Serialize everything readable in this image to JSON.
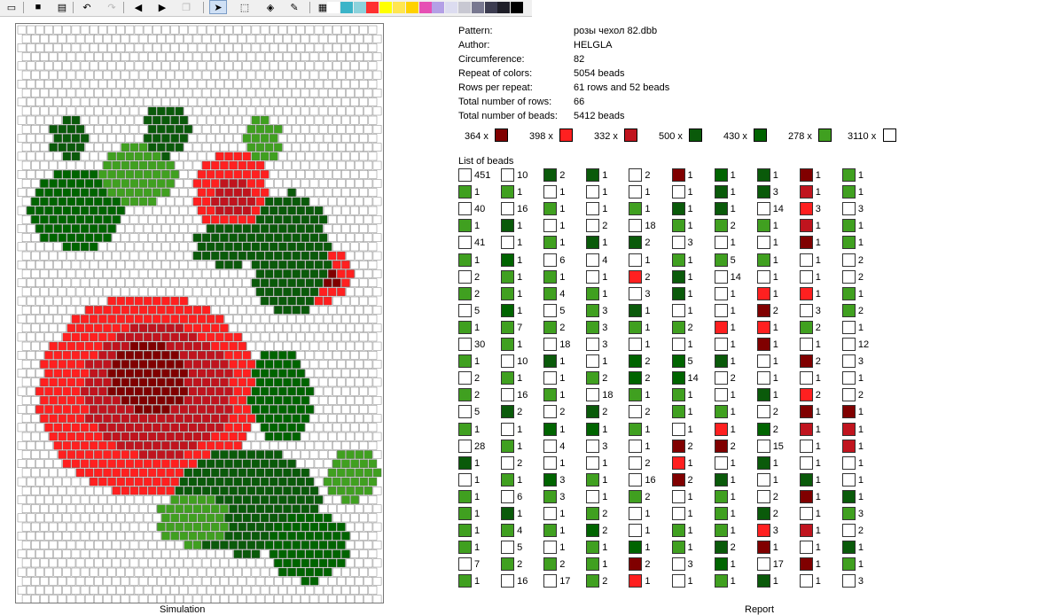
{
  "toolbar": {
    "buttons": [
      {
        "name": "new-icon",
        "glyph": "▭",
        "state": "normal"
      },
      {
        "name": "save-icon",
        "glyph": "■",
        "state": "normal"
      },
      {
        "name": "print-icon",
        "glyph": "▤",
        "state": "normal"
      },
      {
        "name": "undo-icon",
        "glyph": "↶",
        "state": "normal"
      },
      {
        "name": "redo-icon",
        "glyph": "↷",
        "state": "disabled"
      },
      {
        "name": "arrow-left-icon",
        "glyph": "◀",
        "state": "normal"
      },
      {
        "name": "arrow-right-icon",
        "glyph": "▶",
        "state": "normal"
      },
      {
        "name": "copy-icon",
        "glyph": "❐",
        "state": "disabled"
      },
      {
        "name": "pointer-icon",
        "glyph": "➤",
        "state": "active"
      },
      {
        "name": "select-rect-icon",
        "glyph": "⬚",
        "state": "normal"
      },
      {
        "name": "fill-bucket-icon",
        "glyph": "◈",
        "state": "normal"
      },
      {
        "name": "color-picker-icon",
        "glyph": "✎",
        "state": "normal"
      },
      {
        "name": "grid-icon",
        "glyph": "▦",
        "state": "normal"
      }
    ],
    "palette": [
      "#ffffff",
      "#3cb4c8",
      "#8cd2dc",
      "#ff3030",
      "#ffff00",
      "#ffe650",
      "#ffd200",
      "#e650b4",
      "#b4a0e6",
      "#dcdcf0",
      "#c8c8d2",
      "#787890",
      "#3c3c50",
      "#1e1e28",
      "#000000"
    ]
  },
  "labels": {
    "simulation": "Simulation",
    "report": "Report",
    "list_of_beads": "List of beads"
  },
  "info": [
    {
      "label": "Pattern:",
      "value": "розы чехол 82.dbb"
    },
    {
      "label": "Author:",
      "value": "HELGLA"
    },
    {
      "label": "Circumference:",
      "value": "82"
    },
    {
      "label": "Repeat of colors:",
      "value": "5054 beads"
    },
    {
      "label": "Rows per repeat:",
      "value": "61 rows and 52 beads"
    },
    {
      "label": "Total number of rows:",
      "value": "66"
    },
    {
      "label": "Total number of beads:",
      "value": "5412 beads"
    }
  ],
  "colors": {
    "W": "#ffffff",
    "R": "#ff2020",
    "M": "#c0141e",
    "D": "#800000",
    "G": "#0a5a0a",
    "F": "#006400",
    "L": "#40a020"
  },
  "color_summary": [
    {
      "count": "364 x",
      "color": "D"
    },
    {
      "count": "398 x",
      "color": "R"
    },
    {
      "count": "332 x",
      "color": "M"
    },
    {
      "count": "500 x",
      "color": "G"
    },
    {
      "count": "430 x",
      "color": "F"
    },
    {
      "count": "278 x",
      "color": "L"
    },
    {
      "count": "3110 x",
      "color": "W"
    }
  ],
  "bead_list": [
    [
      [
        "W",
        "451"
      ],
      [
        "L",
        "1"
      ],
      [
        "W",
        "40"
      ],
      [
        "L",
        "1"
      ],
      [
        "W",
        "41"
      ],
      [
        "L",
        "1"
      ],
      [
        "W",
        "2"
      ],
      [
        "L",
        "2"
      ],
      [
        "W",
        "5"
      ],
      [
        "L",
        "1"
      ],
      [
        "W",
        "30"
      ],
      [
        "L",
        "1"
      ],
      [
        "W",
        "2"
      ],
      [
        "L",
        "2"
      ],
      [
        "W",
        "5"
      ],
      [
        "L",
        "1"
      ],
      [
        "W",
        "28"
      ],
      [
        "G",
        "1"
      ],
      [
        "W",
        "1"
      ],
      [
        "L",
        "1"
      ],
      [
        "L",
        "1"
      ],
      [
        "L",
        "1"
      ],
      [
        "L",
        "1"
      ],
      [
        "W",
        "7"
      ],
      [
        "L",
        "1"
      ]
    ],
    [
      [
        "W",
        "10"
      ],
      [
        "L",
        "1"
      ],
      [
        "W",
        "16"
      ],
      [
        "G",
        "1"
      ],
      [
        "W",
        "1"
      ],
      [
        "F",
        "1"
      ],
      [
        "L",
        "1"
      ],
      [
        "L",
        "1"
      ],
      [
        "F",
        "1"
      ],
      [
        "L",
        "7"
      ],
      [
        "L",
        "1"
      ],
      [
        "W",
        "10"
      ],
      [
        "L",
        "1"
      ],
      [
        "W",
        "16"
      ],
      [
        "G",
        "2"
      ],
      [
        "W",
        "1"
      ],
      [
        "L",
        "1"
      ],
      [
        "W",
        "2"
      ],
      [
        "L",
        "1"
      ],
      [
        "W",
        "6"
      ],
      [
        "G",
        "1"
      ],
      [
        "L",
        "4"
      ],
      [
        "W",
        "5"
      ],
      [
        "L",
        "2"
      ],
      [
        "W",
        "16"
      ]
    ],
    [
      [
        "G",
        "2"
      ],
      [
        "W",
        "1"
      ],
      [
        "L",
        "1"
      ],
      [
        "W",
        "1"
      ],
      [
        "L",
        "1"
      ],
      [
        "W",
        "6"
      ],
      [
        "L",
        "1"
      ],
      [
        "L",
        "4"
      ],
      [
        "W",
        "5"
      ],
      [
        "L",
        "2"
      ],
      [
        "W",
        "18"
      ],
      [
        "G",
        "1"
      ],
      [
        "W",
        "1"
      ],
      [
        "L",
        "1"
      ],
      [
        "W",
        "2"
      ],
      [
        "F",
        "1"
      ],
      [
        "W",
        "4"
      ],
      [
        "W",
        "1"
      ],
      [
        "F",
        "3"
      ],
      [
        "L",
        "3"
      ],
      [
        "W",
        "1"
      ],
      [
        "L",
        "1"
      ],
      [
        "W",
        "1"
      ],
      [
        "L",
        "2"
      ],
      [
        "W",
        "17"
      ]
    ],
    [
      [
        "G",
        "1"
      ],
      [
        "W",
        "1"
      ],
      [
        "W",
        "1"
      ],
      [
        "W",
        "2"
      ],
      [
        "G",
        "1"
      ],
      [
        "W",
        "4"
      ],
      [
        "W",
        "1"
      ],
      [
        "L",
        "1"
      ],
      [
        "L",
        "3"
      ],
      [
        "L",
        "3"
      ],
      [
        "W",
        "3"
      ],
      [
        "W",
        "1"
      ],
      [
        "L",
        "2"
      ],
      [
        "W",
        "18"
      ],
      [
        "G",
        "2"
      ],
      [
        "F",
        "1"
      ],
      [
        "W",
        "3"
      ],
      [
        "W",
        "1"
      ],
      [
        "L",
        "1"
      ],
      [
        "W",
        "1"
      ],
      [
        "L",
        "2"
      ],
      [
        "F",
        "2"
      ],
      [
        "L",
        "1"
      ],
      [
        "L",
        "1"
      ],
      [
        "L",
        "2"
      ]
    ],
    [
      [
        "W",
        "2"
      ],
      [
        "W",
        "1"
      ],
      [
        "L",
        "1"
      ],
      [
        "W",
        "18"
      ],
      [
        "G",
        "2"
      ],
      [
        "W",
        "1"
      ],
      [
        "R",
        "2"
      ],
      [
        "W",
        "3"
      ],
      [
        "G",
        "1"
      ],
      [
        "L",
        "1"
      ],
      [
        "W",
        "1"
      ],
      [
        "F",
        "2"
      ],
      [
        "F",
        "2"
      ],
      [
        "L",
        "1"
      ],
      [
        "W",
        "2"
      ],
      [
        "L",
        "1"
      ],
      [
        "W",
        "1"
      ],
      [
        "W",
        "2"
      ],
      [
        "W",
        "16"
      ],
      [
        "L",
        "2"
      ],
      [
        "W",
        "1"
      ],
      [
        "W",
        "1"
      ],
      [
        "F",
        "1"
      ],
      [
        "D",
        "2"
      ],
      [
        "R",
        "1"
      ]
    ],
    [
      [
        "D",
        "1"
      ],
      [
        "W",
        "1"
      ],
      [
        "G",
        "1"
      ],
      [
        "L",
        "1"
      ],
      [
        "W",
        "3"
      ],
      [
        "L",
        "1"
      ],
      [
        "G",
        "1"
      ],
      [
        "G",
        "1"
      ],
      [
        "W",
        "1"
      ],
      [
        "L",
        "2"
      ],
      [
        "W",
        "1"
      ],
      [
        "F",
        "5"
      ],
      [
        "F",
        "14"
      ],
      [
        "L",
        "1"
      ],
      [
        "L",
        "1"
      ],
      [
        "W",
        "1"
      ],
      [
        "D",
        "2"
      ],
      [
        "R",
        "1"
      ],
      [
        "D",
        "2"
      ],
      [
        "W",
        "1"
      ],
      [
        "W",
        "1"
      ],
      [
        "L",
        "1"
      ],
      [
        "L",
        "1"
      ],
      [
        "W",
        "3"
      ],
      [
        "W",
        "1"
      ]
    ],
    [
      [
        "F",
        "1"
      ],
      [
        "G",
        "1"
      ],
      [
        "G",
        "1"
      ],
      [
        "L",
        "2"
      ],
      [
        "W",
        "1"
      ],
      [
        "L",
        "5"
      ],
      [
        "W",
        "14"
      ],
      [
        "W",
        "1"
      ],
      [
        "W",
        "1"
      ],
      [
        "R",
        "1"
      ],
      [
        "W",
        "1"
      ],
      [
        "G",
        "1"
      ],
      [
        "W",
        "2"
      ],
      [
        "W",
        "1"
      ],
      [
        "L",
        "1"
      ],
      [
        "R",
        "1"
      ],
      [
        "D",
        "2"
      ],
      [
        "W",
        "1"
      ],
      [
        "G",
        "1"
      ],
      [
        "L",
        "1"
      ],
      [
        "L",
        "1"
      ],
      [
        "L",
        "1"
      ],
      [
        "G",
        "2"
      ],
      [
        "F",
        "1"
      ],
      [
        "L",
        "1"
      ]
    ],
    [
      [
        "G",
        "1"
      ],
      [
        "G",
        "3"
      ],
      [
        "W",
        "14"
      ],
      [
        "L",
        "1"
      ],
      [
        "W",
        "1"
      ],
      [
        "L",
        "1"
      ],
      [
        "W",
        "1"
      ],
      [
        "R",
        "1"
      ],
      [
        "D",
        "2"
      ],
      [
        "R",
        "1"
      ],
      [
        "D",
        "1"
      ],
      [
        "W",
        "1"
      ],
      [
        "W",
        "1"
      ],
      [
        "G",
        "1"
      ],
      [
        "W",
        "2"
      ],
      [
        "F",
        "2"
      ],
      [
        "W",
        "15"
      ],
      [
        "G",
        "1"
      ],
      [
        "W",
        "1"
      ],
      [
        "W",
        "2"
      ],
      [
        "G",
        "2"
      ],
      [
        "R",
        "3"
      ],
      [
        "D",
        "1"
      ],
      [
        "W",
        "17"
      ],
      [
        "G",
        "1"
      ]
    ],
    [
      [
        "D",
        "1"
      ],
      [
        "M",
        "1"
      ],
      [
        "R",
        "3"
      ],
      [
        "M",
        "1"
      ],
      [
        "D",
        "1"
      ],
      [
        "W",
        "1"
      ],
      [
        "W",
        "1"
      ],
      [
        "R",
        "1"
      ],
      [
        "W",
        "3"
      ],
      [
        "L",
        "2"
      ],
      [
        "W",
        "1"
      ],
      [
        "D",
        "2"
      ],
      [
        "W",
        "1"
      ],
      [
        "R",
        "2"
      ],
      [
        "D",
        "1"
      ],
      [
        "M",
        "1"
      ],
      [
        "W",
        "1"
      ],
      [
        "W",
        "1"
      ],
      [
        "G",
        "1"
      ],
      [
        "D",
        "1"
      ],
      [
        "W",
        "1"
      ],
      [
        "M",
        "1"
      ],
      [
        "W",
        "1"
      ],
      [
        "D",
        "1"
      ],
      [
        "W",
        "1"
      ]
    ],
    [
      [
        "L",
        "1"
      ],
      [
        "L",
        "1"
      ],
      [
        "W",
        "3"
      ],
      [
        "L",
        "1"
      ],
      [
        "L",
        "1"
      ],
      [
        "W",
        "2"
      ],
      [
        "W",
        "2"
      ],
      [
        "L",
        "1"
      ],
      [
        "L",
        "2"
      ],
      [
        "W",
        "1"
      ],
      [
        "W",
        "12"
      ],
      [
        "W",
        "3"
      ],
      [
        "W",
        "1"
      ],
      [
        "W",
        "2"
      ],
      [
        "D",
        "1"
      ],
      [
        "M",
        "1"
      ],
      [
        "M",
        "1"
      ],
      [
        "W",
        "1"
      ],
      [
        "W",
        "1"
      ],
      [
        "G",
        "1"
      ],
      [
        "L",
        "3"
      ],
      [
        "W",
        "2"
      ],
      [
        "G",
        "1"
      ],
      [
        "L",
        "1"
      ],
      [
        "W",
        "3"
      ]
    ]
  ]
}
